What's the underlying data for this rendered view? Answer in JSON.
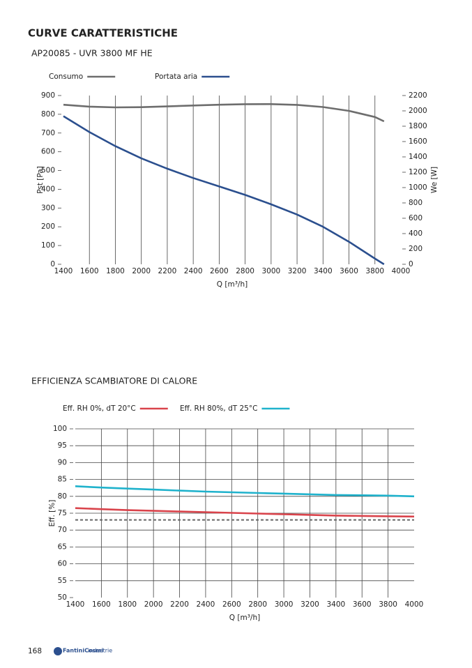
{
  "header": {
    "title": "CURVE CARATTERISTICHE"
  },
  "chart_data": [
    {
      "type": "line",
      "title": "AP20085 - UVR 3800 MF HE",
      "x_label": "Q [m³/h]",
      "y_label": "Pst [Pa]",
      "y2_label": "We [W]",
      "x": [
        1400,
        1600,
        1800,
        2000,
        2200,
        2400,
        2600,
        2800,
        3000,
        3200,
        3400,
        3600,
        3800,
        3870
      ],
      "series": [
        {
          "name": "Consumo",
          "color": "#6d6d6d",
          "axis": "y2",
          "values": [
            2080,
            2055,
            2045,
            2048,
            2058,
            2070,
            2080,
            2087,
            2088,
            2078,
            2050,
            2000,
            1920,
            1864
          ]
        },
        {
          "name": "Portata aria",
          "color": "#2b4f8e",
          "values": [
            790,
            705,
            630,
            565,
            510,
            460,
            415,
            370,
            320,
            265,
            200,
            120,
            30,
            0
          ]
        }
      ],
      "xlim": [
        1400,
        4000
      ],
      "xticks": [
        1400,
        1600,
        1800,
        2000,
        2200,
        2400,
        2600,
        2800,
        3000,
        3200,
        3400,
        3600,
        3800,
        4000
      ],
      "ylim": [
        0,
        900
      ],
      "yticks": [
        0,
        100,
        200,
        300,
        400,
        500,
        600,
        700,
        800,
        900
      ],
      "y2lim": [
        0,
        2200
      ],
      "y2ticks": [
        0,
        200,
        400,
        600,
        800,
        1000,
        1200,
        1400,
        1600,
        1800,
        2000,
        2200
      ],
      "grid": "x"
    },
    {
      "type": "line",
      "title": "EFFICIENZA SCAMBIATORE DI CALORE",
      "x_label": "Q [m³/h]",
      "y_label": "Eff. [%]",
      "x": [
        1400,
        1600,
        1800,
        2000,
        2200,
        2400,
        2600,
        2800,
        3000,
        3200,
        3400,
        3600,
        3800,
        4000
      ],
      "series": [
        {
          "name": "Eff. RH 0%, dT 20°C",
          "color": "#d9434b",
          "values": [
            76.5,
            76.2,
            75.9,
            75.7,
            75.5,
            75.3,
            75.1,
            74.9,
            74.7,
            74.5,
            74.3,
            74.2,
            74.1,
            74.0
          ]
        },
        {
          "name": "Eff. RH 80%, dT 25°C",
          "color": "#1fb2cc",
          "values": [
            83.0,
            82.6,
            82.3,
            82.0,
            81.7,
            81.4,
            81.2,
            81.0,
            80.8,
            80.6,
            80.4,
            80.3,
            80.2,
            80.0
          ]
        }
      ],
      "reference_line": {
        "value": 73,
        "color": "#666666",
        "dashed": true
      },
      "xlim": [
        1400,
        4000
      ],
      "xticks": [
        1400,
        1600,
        1800,
        2000,
        2200,
        2400,
        2600,
        2800,
        3000,
        3200,
        3400,
        3600,
        3800,
        4000
      ],
      "ylim": [
        50,
        100
      ],
      "yticks": [
        50,
        55,
        60,
        65,
        70,
        75,
        80,
        85,
        90,
        95,
        100
      ],
      "grid": "both"
    }
  ],
  "footer": {
    "page": "168",
    "brand": "FantiniCosmi",
    "brand_suffix": "industrie"
  }
}
